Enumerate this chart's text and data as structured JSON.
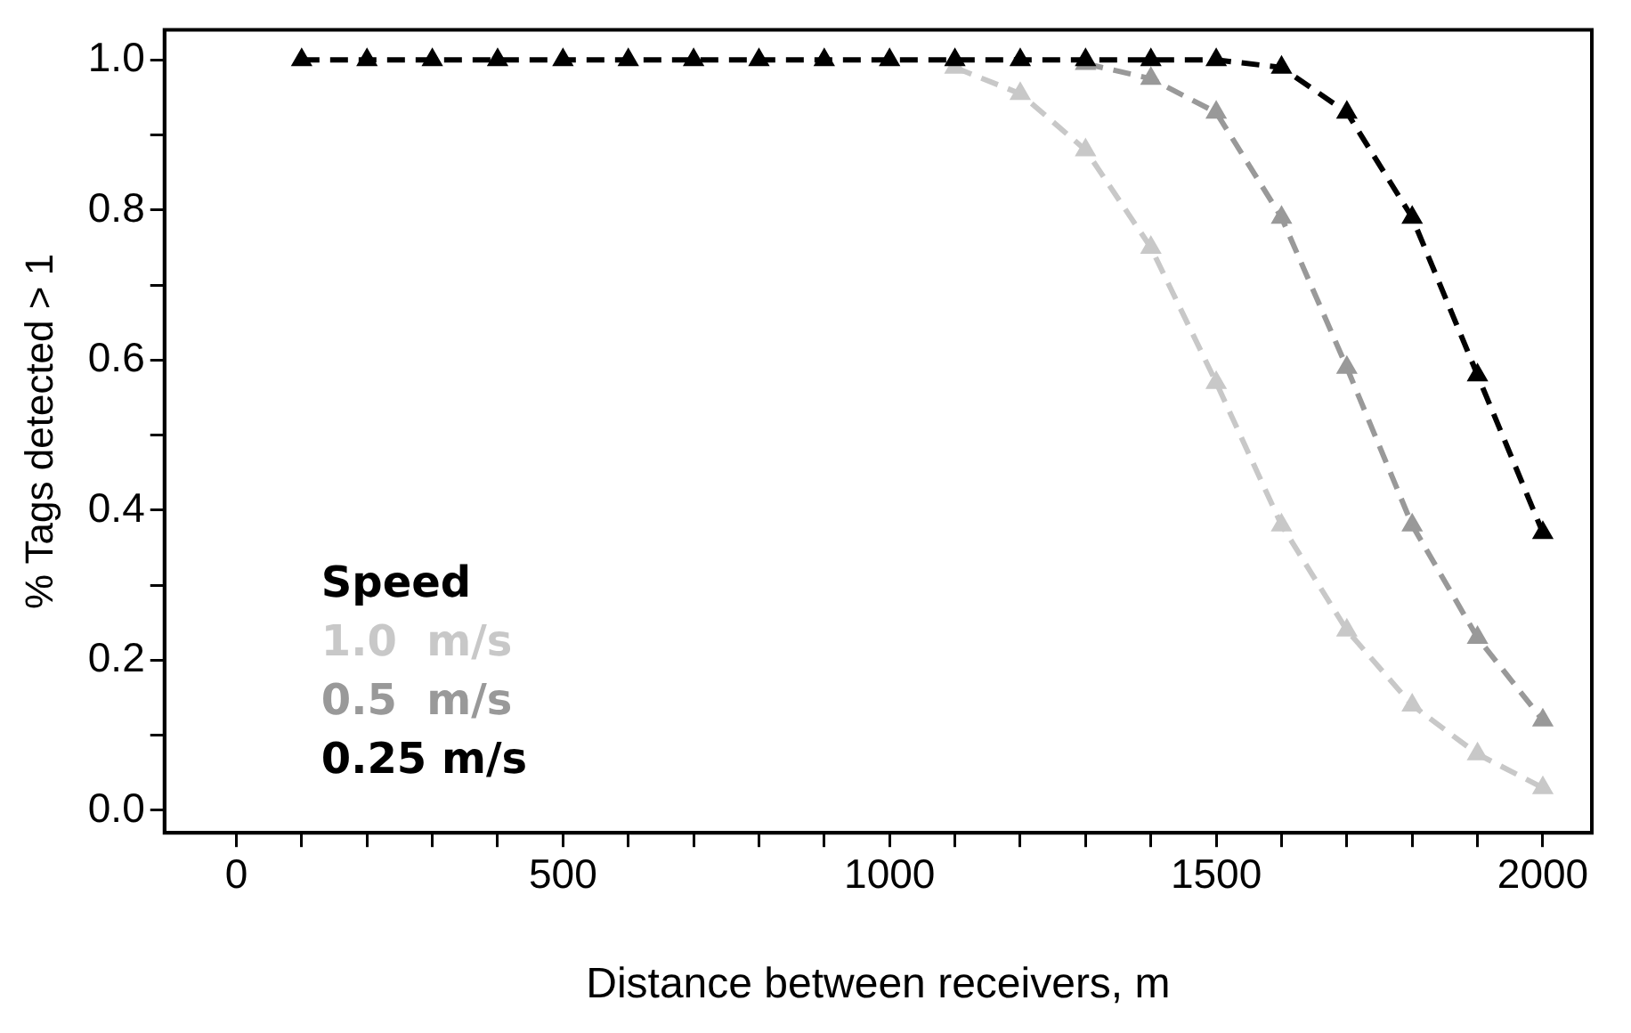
{
  "chart_data": {
    "type": "line",
    "xlabel": "Distance between receivers, m",
    "ylabel": "% Tags detected > 1",
    "legend_title": "Speed",
    "legend": "bottom left",
    "grid": false,
    "marker": "triangle",
    "line_style": "dashed",
    "xlim": [
      -110,
      2075
    ],
    "ylim": [
      -0.03,
      1.04
    ],
    "xticks": [
      0,
      {
        "value": 100,
        "label": null
      },
      {
        "value": 200,
        "label": null
      },
      {
        "value": 300,
        "label": null
      },
      {
        "value": 400,
        "label": null
      },
      500,
      {
        "value": 600,
        "label": null
      },
      {
        "value": 700,
        "label": null
      },
      {
        "value": 800,
        "label": null
      },
      {
        "value": 900,
        "label": null
      },
      1000,
      {
        "value": 1100,
        "label": null
      },
      {
        "value": 1200,
        "label": null
      },
      {
        "value": 1300,
        "label": null
      },
      {
        "value": 1400,
        "label": null
      },
      1500,
      {
        "value": 1600,
        "label": null
      },
      {
        "value": 1700,
        "label": null
      },
      {
        "value": 1800,
        "label": null
      },
      {
        "value": 1900,
        "label": null
      },
      2000
    ],
    "yticks": [
      {
        "value": 0,
        "label": "0.0"
      },
      {
        "value": 0.1,
        "label": null
      },
      {
        "value": 0.2,
        "label": "0.2"
      },
      {
        "value": 0.3,
        "label": null
      },
      {
        "value": 0.4,
        "label": "0.4"
      },
      {
        "value": 0.5,
        "label": null
      },
      {
        "value": 0.6,
        "label": "0.6"
      },
      {
        "value": 0.7,
        "label": null
      },
      {
        "value": 0.8,
        "label": "0.8"
      },
      {
        "value": 0.9,
        "label": null
      },
      {
        "value": 1,
        "label": "1.0"
      }
    ],
    "series": [
      {
        "name": "1.0  m/s",
        "color": "#c8c8c8",
        "x": [
          1100,
          1200,
          1300,
          1400,
          1500,
          1600,
          1700,
          1800,
          1900,
          2000
        ],
        "values": [
          0.99,
          0.955,
          0.88,
          0.75,
          0.57,
          0.38,
          0.24,
          0.14,
          0.075,
          0.03
        ]
      },
      {
        "name": "0.5  m/s",
        "color": "#999999",
        "x": [
          1300,
          1400,
          1500,
          1600,
          1700,
          1800,
          1900,
          2000
        ],
        "values": [
          0.995,
          0.975,
          0.93,
          0.79,
          0.59,
          0.38,
          0.23,
          0.12
        ]
      },
      {
        "name": "0.25 m/s",
        "color": "#000000",
        "x": [
          100,
          200,
          300,
          400,
          500,
          600,
          700,
          800,
          900,
          1000,
          1100,
          1200,
          1300,
          1400,
          1500,
          1600,
          1700,
          1800,
          1900,
          2000
        ],
        "values": [
          1,
          1,
          1,
          1,
          1,
          1,
          1,
          1,
          1,
          1,
          1,
          1,
          1,
          1,
          1,
          0.99,
          0.93,
          0.79,
          0.58,
          0.37
        ]
      }
    ]
  }
}
